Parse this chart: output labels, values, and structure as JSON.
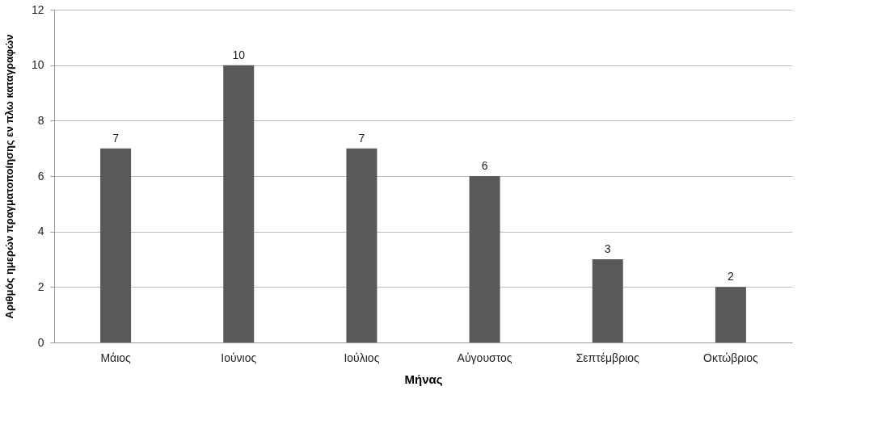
{
  "chart_data": {
    "type": "bar",
    "xlabel": "Μήνας",
    "ylabel": "Αριθμός ημερών πραγματοποίησης εν πλω καταγραφών",
    "categories": [
      "Μάιος",
      "Ιούνιος",
      "Ιούλιος",
      "Αύγουστος",
      "Σεπτέμβριος",
      "Οκτώβριος"
    ],
    "values": [
      7,
      10,
      7,
      6,
      3,
      2
    ],
    "color": "#595959",
    "ylim": [
      0,
      12
    ],
    "yticks": [
      0,
      2,
      4,
      6,
      8,
      10,
      12
    ],
    "grid": "y",
    "data_labels": true
  }
}
